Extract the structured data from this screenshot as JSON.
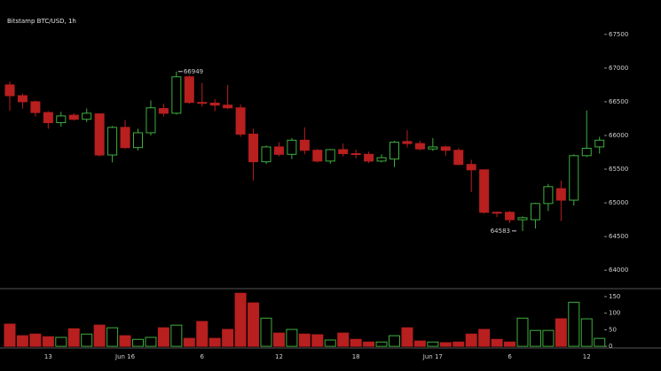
{
  "chart_data": [
    {
      "type": "candlestick",
      "title": "Bitstamp BTC/USD, 1h",
      "categories": [
        null,
        null,
        null,
        "13",
        null,
        null,
        null,
        null,
        null,
        "Jun 16",
        null,
        null,
        null,
        null,
        null,
        "6",
        null,
        null,
        null,
        null,
        null,
        "12",
        null,
        null,
        null,
        null,
        null,
        "18",
        null,
        null,
        null,
        null,
        null,
        "Jun 17",
        null,
        null,
        null,
        null,
        null,
        "6",
        null,
        null,
        null,
        null,
        null,
        "12",
        null
      ],
      "open": [
        66750,
        66590,
        66500,
        66340,
        66190,
        66300,
        66240,
        66320,
        65710,
        66120,
        65820,
        66040,
        66400,
        66330,
        66870,
        66490,
        66480,
        66450,
        66410,
        66020,
        65610,
        65830,
        65720,
        65930,
        65780,
        65620,
        65790,
        65730,
        65720,
        65620,
        65650,
        65910,
        65880,
        65800,
        65830,
        65780,
        65570,
        65490,
        64860,
        64860,
        64750,
        64750,
        64990,
        65210,
        65040,
        65700,
        65830
      ],
      "high": [
        66800,
        66620,
        66520,
        66360,
        66350,
        66330,
        66400,
        66330,
        66140,
        66230,
        66100,
        66520,
        66470,
        66949,
        66890,
        66780,
        66540,
        66750,
        66460,
        66100,
        65850,
        65900,
        65960,
        66120,
        65800,
        65800,
        65880,
        65790,
        65760,
        65720,
        65920,
        66080,
        65920,
        65960,
        65850,
        65810,
        65640,
        65500,
        64870,
        64880,
        64800,
        65000,
        65280,
        65330,
        65720,
        66370,
        65980
      ],
      "low": [
        66370,
        66400,
        66280,
        66100,
        66130,
        66220,
        66200,
        65690,
        65600,
        65800,
        65780,
        66000,
        66280,
        66310,
        66470,
        66430,
        66360,
        66390,
        65980,
        65330,
        65580,
        65690,
        65650,
        65720,
        65600,
        65580,
        65690,
        65660,
        65590,
        65600,
        65530,
        65820,
        65780,
        65770,
        65700,
        65560,
        65160,
        64840,
        64790,
        64700,
        64583,
        64620,
        64880,
        64730,
        64960,
        65680,
        65730
      ],
      "close": [
        66590,
        66500,
        66340,
        66190,
        66290,
        66240,
        66330,
        65710,
        66120,
        65820,
        66040,
        66410,
        66330,
        66870,
        66490,
        66480,
        66450,
        66410,
        66020,
        65610,
        65830,
        65720,
        65930,
        65780,
        65620,
        65790,
        65730,
        65720,
        65620,
        65670,
        65900,
        65880,
        65800,
        65830,
        65780,
        65570,
        65490,
        64860,
        64850,
        64750,
        64780,
        64990,
        65240,
        65040,
        65700,
        65810,
        65930
      ],
      "up_color": "#3fae3f",
      "down_color": "#b81f1f",
      "high_label": 66949,
      "low_label": 64583,
      "ylim": [
        63740,
        68010
      ],
      "yticks": [
        64000,
        64500,
        65000,
        65500,
        66000,
        66500,
        67000,
        67500
      ]
    },
    {
      "type": "bar",
      "values": [
        67,
        32,
        37,
        29,
        27,
        53,
        37,
        64,
        56,
        32,
        21,
        27,
        56,
        64,
        24,
        75,
        24,
        51,
        160,
        131,
        85,
        40,
        51,
        37,
        35,
        19,
        40,
        21,
        13,
        13,
        32,
        56,
        16,
        13,
        11,
        13,
        37,
        51,
        21,
        13,
        85,
        48,
        48,
        83,
        133,
        83,
        24
      ],
      "ylim": [
        -5,
        174
      ],
      "yticks": [
        0,
        50,
        100,
        150
      ]
    }
  ]
}
